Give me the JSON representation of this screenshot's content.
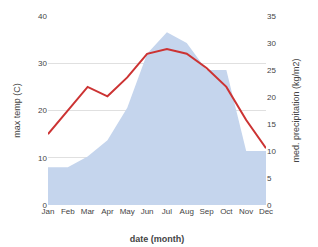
{
  "chart_data": {
    "type": "line",
    "categories": [
      "Jan",
      "Feb",
      "Mar",
      "Apr",
      "May",
      "Jun",
      "Jul",
      "Aug",
      "Sep",
      "Oct",
      "Nov",
      "Dec"
    ],
    "xlabel": "date (month)",
    "ylabel": "max temp (C)",
    "y2label": "med. precipitation (kg/m2)",
    "series": [
      {
        "type": "area",
        "axis": "y2",
        "color": "#c5d5ed",
        "values": [
          7,
          7,
          9,
          12,
          18,
          28,
          32,
          30,
          25,
          25,
          10,
          10
        ]
      },
      {
        "type": "line",
        "color": "#cc3333",
        "values": [
          15,
          20,
          25,
          23,
          27,
          32,
          33,
          32,
          29,
          25,
          18,
          12
        ]
      }
    ],
    "ylim": [
      0,
      40
    ],
    "yticks": [
      0,
      10,
      20,
      30,
      40
    ],
    "y2lim": [
      0,
      35
    ],
    "y2ticks": [
      0,
      5,
      10,
      15,
      20,
      25,
      30,
      35
    ],
    "grid": true
  }
}
